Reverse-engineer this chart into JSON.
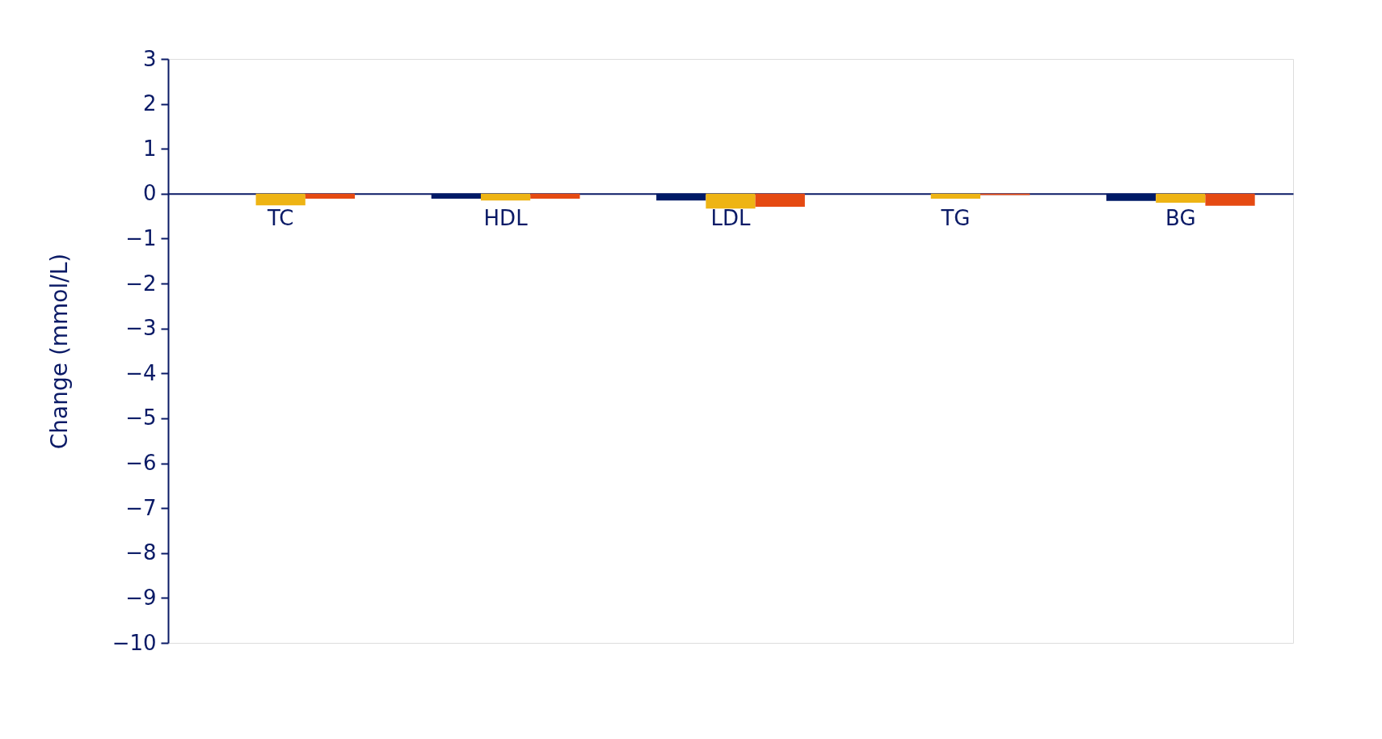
{
  "chart_data": {
    "type": "bar",
    "ylabel": "Change (mmol/L)",
    "categories": [
      "TC",
      "HDL",
      "LDL",
      "TG",
      "BG"
    ],
    "series": [
      {
        "color": "#001a66",
        "values": [
          0,
          -0.11,
          -0.15,
          0,
          -0.16
        ]
      },
      {
        "color": "#eeb414",
        "values": [
          -0.26,
          -0.15,
          -0.33,
          -0.11,
          -0.2
        ]
      },
      {
        "color": "#e54a12",
        "values": [
          -0.11,
          -0.11,
          -0.29,
          -0.03,
          -0.27
        ]
      }
    ],
    "ylim": [
      -10,
      3
    ],
    "yticks": [
      -10,
      -9,
      -8,
      -7,
      -6,
      -5,
      -4,
      -3,
      -2,
      -1,
      0,
      1,
      2,
      3
    ],
    "grid": false,
    "legend": false
  }
}
